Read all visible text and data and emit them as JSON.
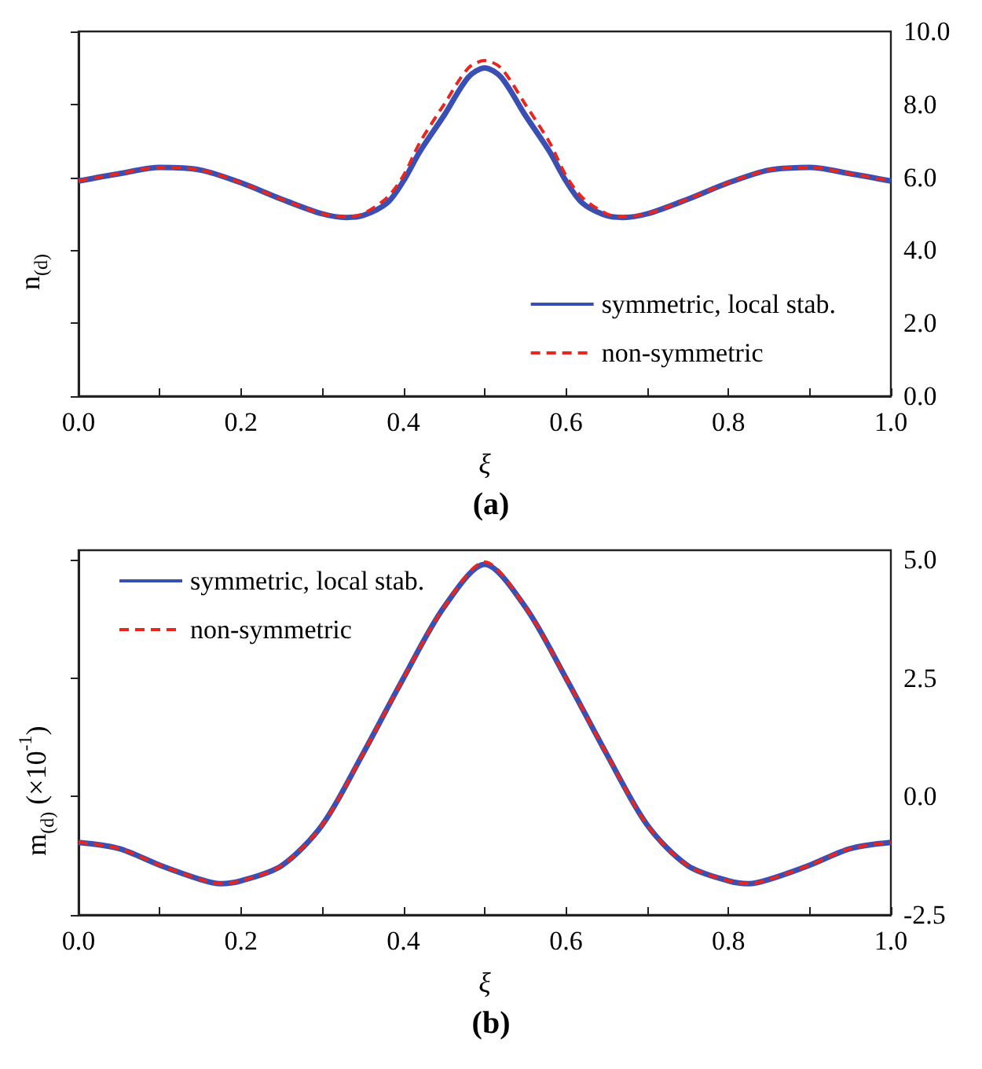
{
  "chart_data": [
    {
      "type": "line",
      "title": "(a)",
      "xlabel": "ξ",
      "ylabel": "n$_{(d)}$",
      "legend": "bottom right",
      "grid": false,
      "marker": "none",
      "x": [
        0,
        0.05,
        0.1,
        0.15,
        0.2,
        0.25,
        0.3,
        0.33,
        0.35,
        0.38,
        0.4,
        0.42,
        0.45,
        0.48,
        0.5,
        0.52,
        0.55,
        0.58,
        0.6,
        0.62,
        0.65,
        0.67,
        0.7,
        0.75,
        0.8,
        0.85,
        0.9,
        0.95,
        1.0
      ],
      "xlim": [
        0,
        1
      ],
      "xticks": [
        {
          "value": 0,
          "label": "0.0"
        },
        {
          "value": 0.1,
          "label": null
        },
        {
          "value": 0.2,
          "label": "0.2"
        },
        {
          "value": 0.3,
          "label": null
        },
        {
          "value": 0.4,
          "label": "0.4"
        },
        {
          "value": 0.5,
          "label": null
        },
        {
          "value": 0.6,
          "label": "0.6"
        },
        {
          "value": 0.7,
          "label": null
        },
        {
          "value": 0.8,
          "label": "0.8"
        },
        {
          "value": 0.9,
          "label": null
        },
        {
          "value": 1,
          "label": "1.0"
        }
      ],
      "ylim": [
        0,
        10
      ],
      "yticks": [
        {
          "value": 0,
          "label": "0.0"
        },
        {
          "value": 2,
          "label": "2.0"
        },
        {
          "value": 4,
          "label": "4.0"
        },
        {
          "value": 6,
          "label": "6.0"
        },
        {
          "value": 8,
          "label": "8.0"
        },
        {
          "value": 10,
          "label": "10.0"
        }
      ],
      "series": [
        {
          "name": "symmetric, local stab.",
          "color": "#3a4fb4",
          "line_style": "solid",
          "values": [
            5.9,
            6.1,
            6.27,
            6.2,
            5.85,
            5.4,
            5.0,
            4.9,
            4.95,
            5.3,
            5.9,
            6.7,
            7.7,
            8.75,
            9.0,
            8.75,
            7.7,
            6.7,
            5.9,
            5.3,
            4.95,
            4.9,
            5.0,
            5.4,
            5.85,
            6.2,
            6.27,
            6.1,
            5.9
          ]
        },
        {
          "name": "non-symmetric",
          "color": "#e8261c",
          "line_style": "dashed",
          "values": [
            5.9,
            6.1,
            6.27,
            6.2,
            5.85,
            5.4,
            5.0,
            4.92,
            5.0,
            5.45,
            6.05,
            6.95,
            8.0,
            9.0,
            9.2,
            9.0,
            8.0,
            6.95,
            6.05,
            5.45,
            5.0,
            4.92,
            5.0,
            5.4,
            5.85,
            6.2,
            6.27,
            6.1,
            5.9
          ]
        }
      ]
    },
    {
      "type": "line",
      "title": "(b)",
      "xlabel": "ξ",
      "ylabel": "m$_{(d)}$ (×10$^{-1}$)",
      "legend": "top left",
      "grid": false,
      "marker": "none",
      "x": [
        0,
        0.05,
        0.1,
        0.15,
        0.175,
        0.2,
        0.25,
        0.3,
        0.35,
        0.4,
        0.45,
        0.5,
        0.55,
        0.6,
        0.65,
        0.7,
        0.75,
        0.8,
        0.825,
        0.85,
        0.9,
        0.95,
        1.0
      ],
      "xlim": [
        0,
        1
      ],
      "xticks": [
        {
          "value": 0,
          "label": "0.0"
        },
        {
          "value": 0.1,
          "label": null
        },
        {
          "value": 0.2,
          "label": "0.2"
        },
        {
          "value": 0.3,
          "label": null
        },
        {
          "value": 0.4,
          "label": "0.4"
        },
        {
          "value": 0.5,
          "label": null
        },
        {
          "value": 0.6,
          "label": "0.6"
        },
        {
          "value": 0.7,
          "label": null
        },
        {
          "value": 0.8,
          "label": "0.8"
        },
        {
          "value": 0.9,
          "label": null
        },
        {
          "value": 1,
          "label": "1.0"
        }
      ],
      "ylim": [
        -2.5,
        5.2
      ],
      "yticks": [
        -2.5,
        {
          "value": 0,
          "label": "0.0"
        },
        2.5,
        {
          "value": 5,
          "label": "5.0"
        }
      ],
      "series": [
        {
          "name": "symmetric, local stab.",
          "color": "#3a4fb4",
          "line_style": "solid",
          "values": [
            -0.97,
            -1.1,
            -1.45,
            -1.75,
            -1.84,
            -1.78,
            -1.46,
            -0.6,
            0.9,
            2.5,
            4.0,
            4.9,
            4.0,
            2.5,
            0.9,
            -0.6,
            -1.46,
            -1.78,
            -1.84,
            -1.75,
            -1.45,
            -1.1,
            -0.97
          ]
        },
        {
          "name": "non-symmetric",
          "color": "#e8261c",
          "line_style": "dashed",
          "values": [
            -0.97,
            -1.1,
            -1.45,
            -1.75,
            -1.84,
            -1.78,
            -1.46,
            -0.6,
            0.9,
            2.5,
            4.0,
            4.95,
            4.0,
            2.5,
            0.9,
            -0.6,
            -1.46,
            -1.78,
            -1.84,
            -1.75,
            -1.45,
            -1.1,
            -0.97
          ]
        }
      ]
    }
  ]
}
